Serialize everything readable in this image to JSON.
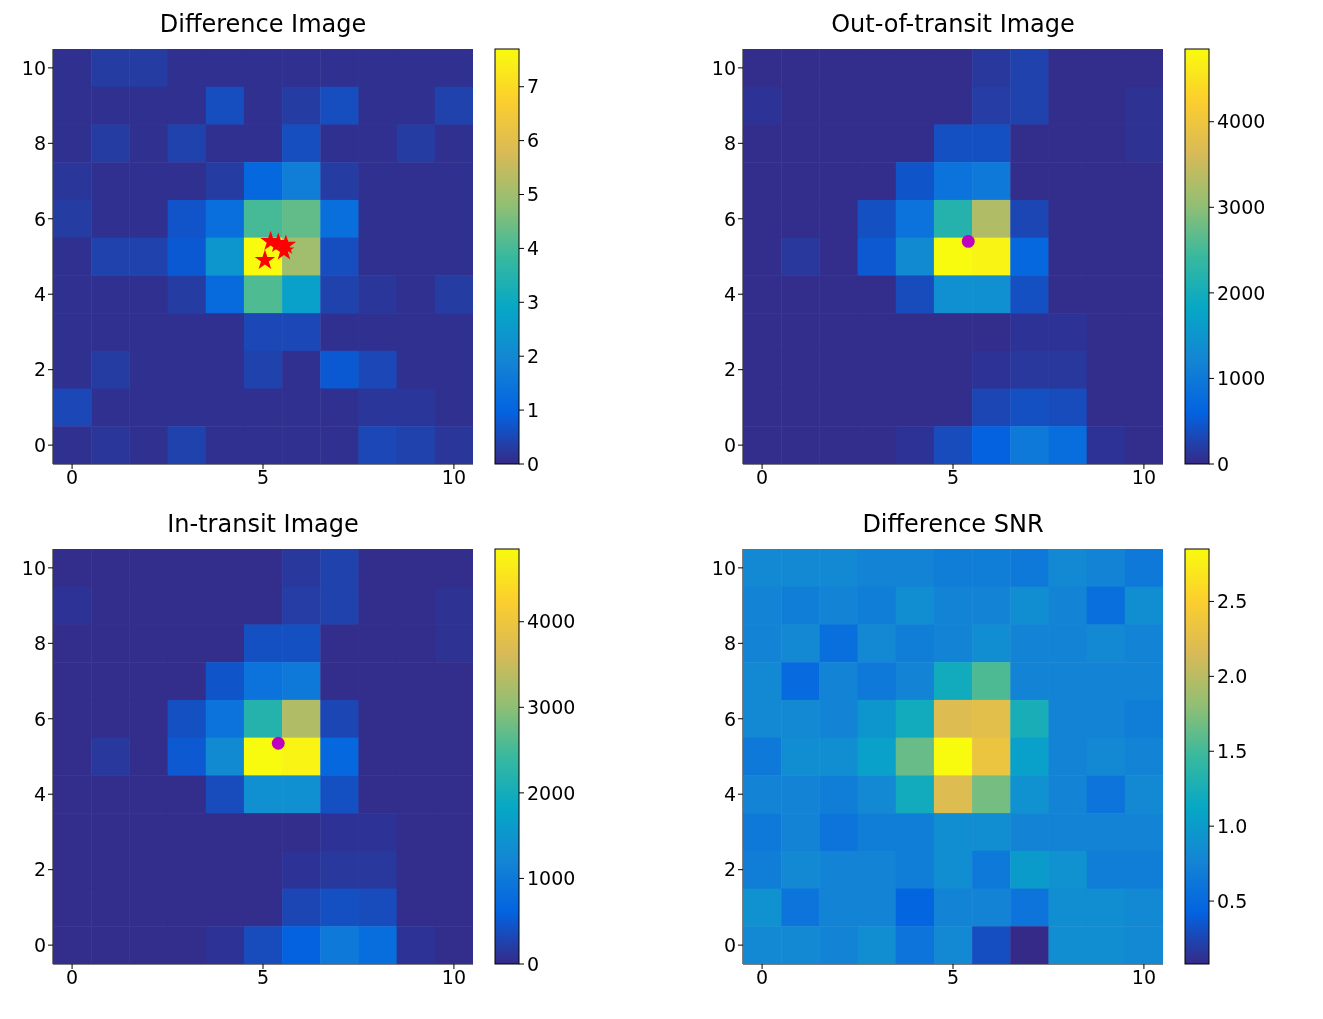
{
  "chart_data": [
    {
      "type": "heatmap",
      "title": "Difference Image",
      "x": [
        0,
        1,
        2,
        3,
        4,
        5,
        6,
        7,
        8,
        9,
        10
      ],
      "y": [
        10,
        9,
        8,
        7,
        6,
        5,
        4,
        3,
        2,
        1,
        0
      ],
      "xlim": [
        -0.5,
        10.5
      ],
      "xticks": [
        0,
        5,
        10
      ],
      "ylim": [
        -0.5,
        10.5
      ],
      "yticks": [
        0,
        2,
        4,
        6,
        8,
        10
      ],
      "clim": [
        0,
        7.7
      ],
      "cticks": [
        0,
        1,
        2,
        3,
        4,
        5,
        6,
        7
      ],
      "cells": [
        [
          0.1,
          0.3,
          0.3,
          0.1,
          0.1,
          0.1,
          0.1,
          0.1,
          0.1,
          0.1,
          0.1
        ],
        [
          0.1,
          0.1,
          0.1,
          0.1,
          0.6,
          0.1,
          0.3,
          0.6,
          0.1,
          0.1,
          0.4
        ],
        [
          0.1,
          0.3,
          0.1,
          0.4,
          0.1,
          0.1,
          0.6,
          0.1,
          0.1,
          0.3,
          0.1
        ],
        [
          0.2,
          0.1,
          0.1,
          0.1,
          0.3,
          1.1,
          1.7,
          0.3,
          0.1,
          0.1,
          0.1
        ],
        [
          0.3,
          0.1,
          0.1,
          0.7,
          1.3,
          4.0,
          4.3,
          1.3,
          0.1,
          0.1,
          0.1
        ],
        [
          0.1,
          0.4,
          0.4,
          0.8,
          2.4,
          7.7,
          5.0,
          0.6,
          0.1,
          0.1,
          0.1
        ],
        [
          0.1,
          0.1,
          0.1,
          0.3,
          1.2,
          4.1,
          2.7,
          0.4,
          0.2,
          0.1,
          0.3
        ],
        [
          0.1,
          0.1,
          0.1,
          0.1,
          0.1,
          0.5,
          0.5,
          0.1,
          0.1,
          0.1,
          0.1
        ],
        [
          0.1,
          0.3,
          0.1,
          0.1,
          0.1,
          0.4,
          0.1,
          0.8,
          0.5,
          0.1,
          0.1
        ],
        [
          0.5,
          0.1,
          0.1,
          0.1,
          0.1,
          0.1,
          0.1,
          0.1,
          0.2,
          0.2,
          0.1
        ],
        [
          0.1,
          0.2,
          0.1,
          0.4,
          0.1,
          0.1,
          0.1,
          0.1,
          0.5,
          0.4,
          0.2
        ]
      ],
      "series": [
        {
          "type": "scatter",
          "color": "#ff0000",
          "marker": "star",
          "x": [
            5.2,
            5.4,
            5.6,
            5.55,
            5.05
          ],
          "values": [
            5.4,
            5.35,
            5.3,
            5.15,
            4.9
          ]
        }
      ]
    },
    {
      "type": "heatmap",
      "title": "Out-of-transit Image",
      "x": [
        0,
        1,
        2,
        3,
        4,
        5,
        6,
        7,
        8,
        9,
        10
      ],
      "y": [
        10,
        9,
        8,
        7,
        6,
        5,
        4,
        3,
        2,
        1,
        0
      ],
      "xlim": [
        -0.5,
        10.5
      ],
      "xticks": [
        0,
        5,
        10
      ],
      "ylim": [
        -0.5,
        10.5
      ],
      "yticks": [
        0,
        2,
        4,
        6,
        8,
        10
      ],
      "clim": [
        0,
        4850
      ],
      "cticks": [
        0,
        1000,
        2000,
        3000,
        4000
      ],
      "cells": [
        [
          30,
          30,
          30,
          30,
          30,
          30,
          150,
          250,
          30,
          30,
          30
        ],
        [
          100,
          30,
          30,
          30,
          30,
          30,
          200,
          250,
          30,
          30,
          80
        ],
        [
          30,
          30,
          30,
          30,
          30,
          400,
          400,
          30,
          30,
          30,
          80
        ],
        [
          30,
          30,
          30,
          30,
          450,
          900,
          1000,
          30,
          30,
          30,
          30
        ],
        [
          30,
          30,
          30,
          400,
          900,
          2200,
          3300,
          300,
          30,
          30,
          30
        ],
        [
          30,
          150,
          30,
          500,
          1300,
          4850,
          4750,
          700,
          30,
          30,
          30
        ],
        [
          30,
          30,
          30,
          30,
          350,
          1400,
          1400,
          400,
          30,
          30,
          30
        ],
        [
          30,
          30,
          30,
          30,
          30,
          30,
          30,
          100,
          100,
          30,
          30
        ],
        [
          30,
          30,
          30,
          30,
          30,
          30,
          100,
          150,
          150,
          30,
          30
        ],
        [
          30,
          30,
          30,
          30,
          30,
          30,
          300,
          400,
          350,
          30,
          30
        ],
        [
          30,
          30,
          30,
          30,
          100,
          350,
          600,
          1000,
          800,
          100,
          30
        ]
      ],
      "series": [
        {
          "type": "scatter",
          "color": "#c000c0",
          "marker": "circle",
          "x": [
            5.4
          ],
          "values": [
            5.4
          ]
        }
      ]
    },
    {
      "type": "heatmap",
      "title": "In-transit Image",
      "x": [
        0,
        1,
        2,
        3,
        4,
        5,
        6,
        7,
        8,
        9,
        10
      ],
      "y": [
        10,
        9,
        8,
        7,
        6,
        5,
        4,
        3,
        2,
        1,
        0
      ],
      "xlim": [
        -0.5,
        10.5
      ],
      "xticks": [
        0,
        5,
        10
      ],
      "ylim": [
        -0.5,
        10.5
      ],
      "yticks": [
        0,
        2,
        4,
        6,
        8,
        10
      ],
      "clim": [
        0,
        4850
      ],
      "cticks": [
        0,
        1000,
        2000,
        3000,
        4000
      ],
      "cells": [
        [
          30,
          30,
          30,
          30,
          30,
          30,
          150,
          250,
          30,
          30,
          30
        ],
        [
          100,
          30,
          30,
          30,
          30,
          30,
          200,
          250,
          30,
          30,
          80
        ],
        [
          30,
          30,
          30,
          30,
          30,
          400,
          400,
          30,
          30,
          30,
          80
        ],
        [
          30,
          30,
          30,
          30,
          450,
          900,
          1000,
          30,
          30,
          30,
          30
        ],
        [
          30,
          30,
          30,
          400,
          900,
          2200,
          3300,
          300,
          30,
          30,
          30
        ],
        [
          30,
          150,
          30,
          500,
          1300,
          4850,
          4750,
          700,
          30,
          30,
          30
        ],
        [
          30,
          30,
          30,
          30,
          350,
          1400,
          1400,
          400,
          30,
          30,
          30
        ],
        [
          30,
          30,
          30,
          30,
          30,
          30,
          30,
          100,
          100,
          30,
          30
        ],
        [
          30,
          30,
          30,
          30,
          30,
          30,
          100,
          150,
          150,
          30,
          30
        ],
        [
          30,
          30,
          30,
          30,
          30,
          30,
          300,
          400,
          350,
          30,
          30
        ],
        [
          30,
          30,
          30,
          30,
          100,
          350,
          600,
          1000,
          800,
          100,
          30
        ]
      ],
      "series": [
        {
          "type": "scatter",
          "color": "#c000c0",
          "marker": "circle",
          "x": [
            5.4
          ],
          "values": [
            5.35
          ]
        }
      ]
    },
    {
      "type": "heatmap",
      "title": "Difference SNR",
      "x": [
        0,
        1,
        2,
        3,
        4,
        5,
        6,
        7,
        8,
        9,
        10
      ],
      "y": [
        10,
        9,
        8,
        7,
        6,
        5,
        4,
        3,
        2,
        1,
        0
      ],
      "xlim": [
        -0.5,
        10.5
      ],
      "xticks": [
        0,
        5,
        10
      ],
      "ylim": [
        -0.5,
        10.5
      ],
      "yticks": [
        0,
        2,
        4,
        6,
        8,
        10
      ],
      "clim": [
        0.08,
        2.85
      ],
      "cticks": [
        0.5,
        {
          "value": 1,
          "label": "1.0"
        },
        1.5,
        {
          "value": 2,
          "label": "2.0"
        },
        2.5
      ],
      "cells": [
        [
          0.8,
          0.8,
          0.8,
          0.75,
          0.75,
          0.7,
          0.7,
          0.65,
          0.8,
          0.75,
          0.65
        ],
        [
          0.75,
          0.7,
          0.75,
          0.7,
          0.85,
          0.75,
          0.75,
          0.85,
          0.75,
          0.55,
          0.85
        ],
        [
          0.75,
          0.8,
          0.55,
          0.8,
          0.7,
          0.75,
          0.85,
          0.75,
          0.75,
          0.8,
          0.75
        ],
        [
          0.8,
          0.5,
          0.75,
          0.65,
          0.75,
          1.2,
          1.55,
          0.75,
          0.75,
          0.75,
          0.75
        ],
        [
          0.8,
          0.8,
          0.75,
          0.95,
          1.2,
          2.2,
          2.25,
          1.25,
          0.75,
          0.75,
          0.7
        ],
        [
          0.65,
          0.85,
          0.85,
          1.05,
          1.65,
          2.85,
          2.35,
          1.05,
          0.75,
          0.8,
          0.75
        ],
        [
          0.75,
          0.75,
          0.7,
          0.8,
          1.2,
          2.2,
          1.7,
          0.9,
          0.75,
          0.6,
          0.8
        ],
        [
          0.65,
          0.75,
          0.6,
          0.7,
          0.7,
          0.85,
          0.85,
          0.75,
          0.75,
          0.75,
          0.75
        ],
        [
          0.7,
          0.8,
          0.75,
          0.75,
          0.7,
          0.85,
          0.65,
          1.0,
          0.9,
          0.7,
          0.7
        ],
        [
          0.9,
          0.6,
          0.75,
          0.75,
          0.45,
          0.75,
          0.75,
          0.6,
          0.85,
          0.85,
          0.8
        ],
        [
          0.8,
          0.8,
          0.75,
          0.85,
          0.6,
          0.8,
          0.3,
          0.08,
          0.85,
          0.85,
          0.8
        ]
      ]
    }
  ]
}
